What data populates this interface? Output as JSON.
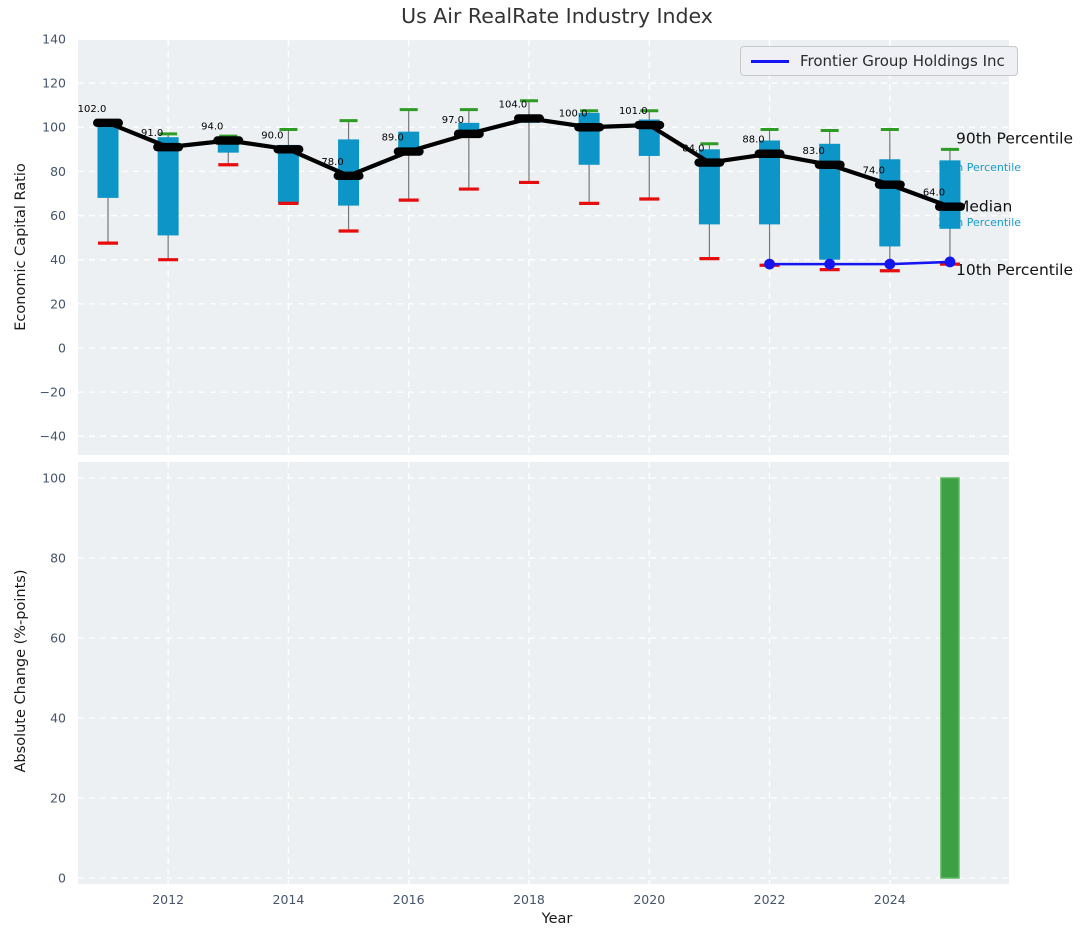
{
  "title": "Us Air RealRate Industry Index",
  "legend": {
    "label": "Frontier Group Holdings Inc",
    "line_color": "#1515ef"
  },
  "chart_data": [
    {
      "type": "boxplot+line",
      "panel": "top",
      "ylabel": "Economic Capital Ratio",
      "ylim": [
        -48.5,
        139.5
      ],
      "grid": true,
      "x": [
        2011,
        2012,
        2013,
        2014,
        2015,
        2016,
        2017,
        2018,
        2019,
        2020,
        2021,
        2022,
        2023,
        2024,
        2025
      ],
      "xtick_values": [
        2012,
        2014,
        2016,
        2018,
        2020,
        2022,
        2024
      ],
      "ytick_labels": [
        "140",
        "120",
        "100",
        "80",
        "60",
        "40",
        "20",
        "0",
        "−20",
        "−40"
      ],
      "ytick_values": [
        140,
        120,
        100,
        80,
        60,
        40,
        20,
        0,
        -20,
        -40
      ],
      "series": [
        {
          "name": "Industry Median",
          "values": [
            102,
            91,
            94,
            90,
            78,
            89,
            97,
            104,
            100,
            101,
            84,
            88,
            83,
            74,
            64
          ],
          "point_labels": [
            "102.0",
            "91.0",
            "94.0",
            "90.0",
            "78.0",
            "89.0",
            "97.0",
            "104.0",
            "100.0",
            "101.0",
            "84.0",
            "88.0",
            "83.0",
            "74.0",
            "64.0"
          ],
          "color": "#000000"
        }
      ],
      "boxes": {
        "p75": [
          101,
          95.5,
          94.5,
          92,
          94.5,
          98,
          102,
          105,
          106.5,
          103.5,
          90,
          94,
          92.5,
          85.5,
          85
        ],
        "p25": [
          68,
          51,
          88.5,
          65.5,
          64.5,
          87.5,
          95.5,
          102,
          83,
          87,
          56,
          56,
          40,
          46,
          54
        ],
        "p90": [
          102,
          97,
          96,
          99,
          103,
          108,
          108,
          112,
          107.5,
          107.5,
          92.5,
          99,
          98.5,
          99,
          90
        ],
        "p10": [
          47.5,
          40,
          83,
          65.5,
          53,
          67,
          72,
          75,
          65.5,
          67.5,
          40.5,
          37.5,
          35.5,
          35,
          38
        ],
        "box_color": "#0d95c8",
        "p90_cap_color": "#2e9c24",
        "p10_cap_color": "#e80d0d",
        "whisker_color": "#777777"
      },
      "company_line": {
        "name": "Frontier Group Holdings Inc",
        "x": [
          2022,
          2023,
          2024,
          2025
        ],
        "values": [
          38,
          38,
          38,
          39
        ],
        "color": "#1515ef"
      },
      "annotations": [
        {
          "label": "90th Percentile",
          "y": 95,
          "color": "#111111",
          "size": "large"
        },
        {
          "label": "75th Percentile",
          "y": 82,
          "color": "#189cc9",
          "size": "small"
        },
        {
          "label": "Median",
          "y": 64,
          "color": "#111111",
          "size": "large"
        },
        {
          "label": "25th Percentile",
          "y": 57,
          "color": "#189cc9",
          "size": "small"
        },
        {
          "label": "10th Percentile",
          "y": 35.3,
          "color": "#111111",
          "size": "large"
        }
      ],
      "legend_position": "upper right"
    },
    {
      "type": "bar",
      "panel": "bottom",
      "ylabel": "Absolute Change (%-points)",
      "xlabel": "Year",
      "ylim": [
        0,
        104
      ],
      "grid": true,
      "xtick_values": [
        2012,
        2014,
        2016,
        2018,
        2020,
        2022,
        2024
      ],
      "ytick_labels": [
        "100",
        "80",
        "60",
        "40",
        "20",
        "0"
      ],
      "ytick_values": [
        100,
        80,
        60,
        40,
        20,
        0
      ],
      "bars": [
        {
          "x": 2025,
          "value": 100
        }
      ],
      "bar_color": "#3da044",
      "bar_edge_color": "#5cb860"
    }
  ],
  "style": {
    "plot_bg": "#edf0f2",
    "grid_color": "#ffffff",
    "tick_color": "#44546a"
  }
}
